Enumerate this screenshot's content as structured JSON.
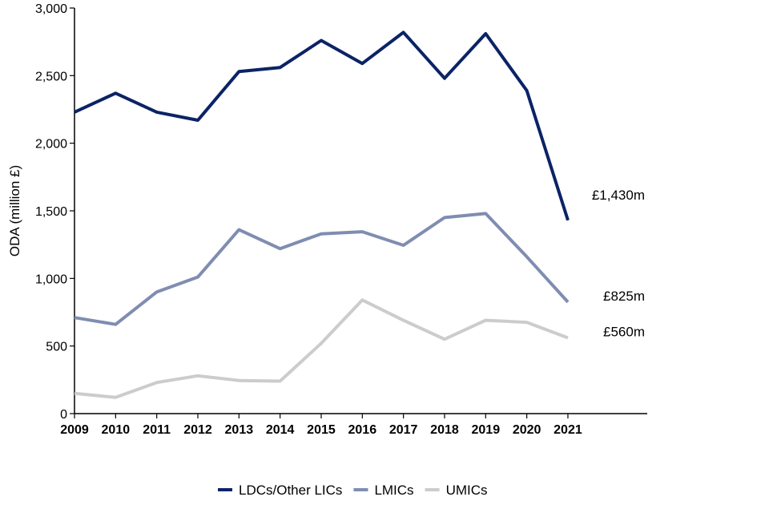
{
  "chart_data": {
    "type": "line",
    "title": "",
    "xlabel": "",
    "ylabel": "ODA (million £)",
    "ylim": [
      0,
      3000
    ],
    "yticks": [
      0,
      500,
      1000,
      1500,
      2000,
      2500,
      3000
    ],
    "ytick_labels": [
      "0",
      "500",
      "1,000",
      "1,500",
      "2,000",
      "2,500",
      "3,000"
    ],
    "x": [
      "2009",
      "2010",
      "2011",
      "2012",
      "2013",
      "2014",
      "2015",
      "2016",
      "2017",
      "2018",
      "2019",
      "2020",
      "2021"
    ],
    "legend_position": "bottom",
    "series": [
      {
        "name": "LDCs/Other LICs",
        "color": "#0b2366",
        "values": [
          2230,
          2370,
          2230,
          2170,
          2530,
          2560,
          2760,
          2590,
          2820,
          2480,
          2810,
          2390,
          1430
        ],
        "end_label": "£1,430m"
      },
      {
        "name": "LMICs",
        "color": "#7f8db1",
        "values": [
          710,
          660,
          900,
          1010,
          1360,
          1220,
          1330,
          1345,
          1245,
          1450,
          1480,
          1160,
          825
        ],
        "end_label": "£825m"
      },
      {
        "name": "UMICs",
        "color": "#cccccc",
        "values": [
          150,
          120,
          230,
          280,
          245,
          240,
          520,
          840,
          690,
          550,
          690,
          675,
          560
        ],
        "end_label": "£560m"
      }
    ]
  }
}
